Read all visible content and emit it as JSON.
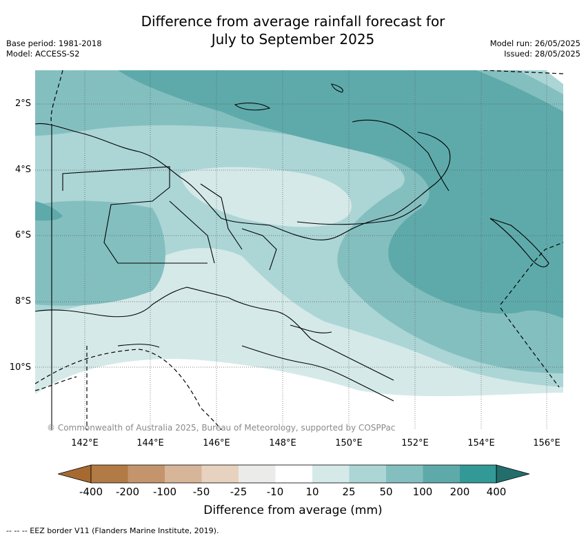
{
  "header": {
    "title_line1": "Difference from average rainfall forecast for",
    "title_line2": "July to September 2025",
    "base_period": "Base period: 1981-2018",
    "model": "Model: ACCESS-S2",
    "model_run": "Model run: 26/05/2025",
    "issued": "Issued: 28/05/2025"
  },
  "map": {
    "lat_labels": [
      "2°S",
      "4°S",
      "6°S",
      "8°S",
      "10°S"
    ],
    "lon_labels": [
      "142°E",
      "144°E",
      "146°E",
      "148°E",
      "150°E",
      "152°E",
      "154°E",
      "156°E"
    ],
    "copyright": "© Commonwealth of Australia 2025, Bureau of Meteorology, supported by COSPPac",
    "colors": {
      "c10_25": "#d5e9e9",
      "c25_50": "#acd5d6",
      "c50_100": "#84bfc0",
      "c100_200": "#5eaaab",
      "land": "none",
      "border": "#000000"
    }
  },
  "colorbar": {
    "ticks": [
      "-400",
      "-200",
      "-100",
      "-50",
      "-25",
      "-10",
      "10",
      "25",
      "50",
      "100",
      "200",
      "400"
    ],
    "colors": [
      "#a66a31",
      "#b27a45",
      "#c4956c",
      "#d7b598",
      "#e6d2bf",
      "#ebebe9",
      "#ffffff",
      "#d5e9e9",
      "#acd5d6",
      "#84bfc0",
      "#5eaaab",
      "#339997",
      "#226e6d"
    ],
    "label": "Difference from average (mm)"
  },
  "footnote": "-- -- -- EEZ border V11 (Flanders Marine Institute, 2019)."
}
